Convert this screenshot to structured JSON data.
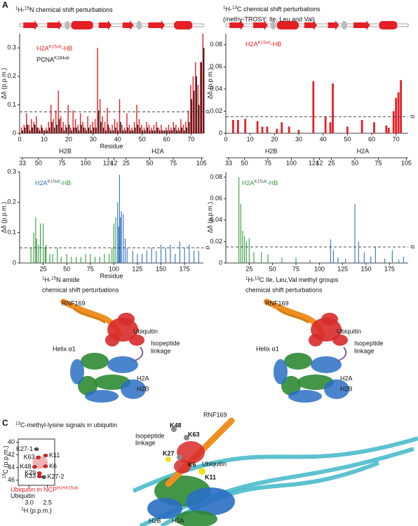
{
  "panel_labels": [
    "A",
    "C"
  ],
  "chart_data": [
    {
      "type": "bar",
      "title": [
        {
          "t": "1",
          "sup": true
        },
        {
          "t": "H-"
        },
        {
          "t": "15",
          "sup": true
        },
        {
          "t": "N chemical shift perturbations"
        }
      ],
      "xlabel": "Residue",
      "ylabel": "Δδ (p.p.m.)",
      "xlim": [
        0,
        75
      ],
      "xticks": [
        0,
        10,
        20,
        30,
        40,
        50,
        60,
        70
      ],
      "ylim": [
        0,
        0.35
      ],
      "yticks": [
        0,
        0.1,
        0.2,
        0.3
      ],
      "threshold": {
        "value": 0.075,
        "label": "σ"
      },
      "series": [
        {
          "name": [
            {
              "t": "H2A",
              "color": "#e41f26"
            },
            {
              "t": "K15ub",
              "sup": true,
              "color": "#e41f26"
            },
            {
              "t": "-HB",
              "color": "#e41f26"
            }
          ],
          "color": "#e41f26",
          "x": [
            1,
            2,
            3,
            4,
            5,
            6,
            7,
            8,
            9,
            10,
            11,
            12,
            13,
            14,
            15,
            16,
            17,
            18,
            19,
            20,
            21,
            22,
            23,
            24,
            25,
            26,
            27,
            28,
            29,
            30,
            31,
            32,
            33,
            34,
            35,
            36,
            37,
            38,
            39,
            40,
            41,
            42,
            43,
            44,
            45,
            46,
            47,
            48,
            49,
            50,
            51,
            52,
            53,
            54,
            55,
            56,
            57,
            58,
            59,
            60,
            61,
            62,
            63,
            64,
            65,
            66,
            67,
            68,
            69,
            70,
            71,
            72,
            73,
            74,
            75
          ],
          "values": [
            0.02,
            0.03,
            0.07,
            0.03,
            0.05,
            0.04,
            0.06,
            0.02,
            0.03,
            0.01,
            0.02,
            0.04,
            0.1,
            0.05,
            0.08,
            0.15,
            0.06,
            0.04,
            0.03,
            0.1,
            0.02,
            0.08,
            0.05,
            0.03,
            0.07,
            0.04,
            0.02,
            0.06,
            0.03,
            0.04,
            0.05,
            0.3,
            0.12,
            0.06,
            0.04,
            0.09,
            0.02,
            0.03,
            0.05,
            0.04,
            0.12,
            0.03,
            0.02,
            0.07,
            0.03,
            0.02,
            0.04,
            0.1,
            0.05,
            0.03,
            0.02,
            0.04,
            0.03,
            0.02,
            0.03,
            0.04,
            0.02,
            0.03,
            0.01,
            0.02,
            0.03,
            0.02,
            0.04,
            0.03,
            0.02,
            0.05,
            0.03,
            0.04,
            0.08,
            0.17,
            0.2,
            0.25,
            0.17,
            0.25,
            0.35
          ]
        },
        {
          "name": [
            {
              "t": "PCNA"
            },
            {
              "t": "K164ub",
              "sup": true
            }
          ],
          "color": "#111111",
          "x": [
            1,
            2,
            3,
            4,
            5,
            6,
            7,
            8,
            9,
            10,
            11,
            12,
            13,
            14,
            15,
            16,
            17,
            18,
            19,
            20,
            21,
            22,
            23,
            24,
            25,
            26,
            27,
            28,
            29,
            30,
            31,
            32,
            33,
            34,
            35,
            36,
            37,
            38,
            39,
            40,
            41,
            42,
            43,
            44,
            45,
            46,
            47,
            48,
            49,
            50,
            51,
            52,
            53,
            54,
            55,
            56,
            57,
            58,
            59,
            60,
            61,
            62,
            63,
            64,
            65,
            66,
            67,
            68,
            69,
            70,
            71,
            72,
            73,
            74,
            75
          ],
          "values": [
            0.01,
            0.02,
            0.03,
            0.01,
            0.02,
            0.03,
            0.02,
            0.01,
            0.02,
            0.01,
            0.01,
            0.02,
            0.04,
            0.02,
            0.03,
            0.05,
            0.02,
            0.01,
            0.02,
            0.03,
            0.01,
            0.02,
            0.02,
            0.01,
            0.03,
            0.02,
            0.01,
            0.02,
            0.01,
            0.02,
            0.02,
            0.08,
            0.04,
            0.02,
            0.01,
            0.03,
            0.01,
            0.01,
            0.02,
            0.01,
            0.04,
            0.01,
            0.01,
            0.02,
            0.01,
            0.01,
            0.02,
            0.03,
            0.02,
            0.01,
            0.01,
            0.02,
            0.01,
            0.01,
            0.01,
            0.02,
            0.01,
            0.01,
            0.01,
            0.01,
            0.01,
            0.01,
            0.02,
            0.01,
            0.01,
            0.02,
            0.01,
            0.02,
            0.04,
            0.12,
            0.15,
            0.2,
            0.1,
            0.25,
            0.3
          ]
        }
      ]
    },
    {
      "type": "bar",
      "title": [
        {
          "t": "1",
          "sup": true
        },
        {
          "t": "H-"
        },
        {
          "t": "13",
          "sup": true
        },
        {
          "t": "C chemical shift perturbations"
        }
      ],
      "subtitle": "(methy-TROSY: Ile, Leu and Val)",
      "ylabel": "Δδ (p.p.m.)",
      "xlim": [
        0,
        75
      ],
      "xticks": [
        0,
        10,
        20,
        30,
        40,
        50,
        60,
        70
      ],
      "ylim": [
        0,
        0.09
      ],
      "yticks": [
        0,
        0.02,
        0.04,
        0.06,
        0.08
      ],
      "threshold": {
        "value": 0.015,
        "label": "σ"
      },
      "series": [
        {
          "name": [
            {
              "t": "H2A",
              "color": "#e41f26"
            },
            {
              "t": "K15ub",
              "sup": true,
              "color": "#e41f26"
            },
            {
              "t": "-HB",
              "color": "#e41f26"
            }
          ],
          "color": "#e41f26",
          "x": [
            3,
            5,
            8,
            13,
            15,
            17,
            21,
            23,
            26,
            30,
            36,
            41,
            43,
            44,
            50,
            56,
            61,
            66,
            67,
            69,
            70,
            71,
            72
          ],
          "values": [
            0.012,
            0.012,
            0.013,
            0.011,
            0.006,
            0.006,
            0.004,
            0.01,
            0.006,
            0.003,
            0.047,
            0.015,
            0.01,
            0.045,
            0.006,
            0.012,
            0.01,
            0.007,
            0.005,
            0.02,
            0.032,
            0.037,
            0.048
          ]
        }
      ]
    },
    {
      "type": "bar",
      "xlabel": "Residue",
      "ylabel": "Δδ (p.p.m.)",
      "label": [
        {
          "t": "H2A",
          "color": "#2a6ec3"
        },
        {
          "t": "K15ub",
          "sup": true,
          "color": "#555555"
        },
        {
          "t": "-HB",
          "color": "#2f9a3a"
        }
      ],
      "xlim": [
        0,
        195
      ],
      "xticks": [
        25,
        50,
        75,
        100,
        125,
        150,
        175
      ],
      "ylim": [
        0,
        0.3
      ],
      "yticks": [
        0,
        0.1,
        0.2,
        0.3
      ],
      "threshold": {
        "value": 0.05,
        "label": "σ"
      },
      "top_axis": [
        {
          "name": "H2B",
          "color": "#2f9a3a",
          "ticks": [
            {
              "value": 3,
              "label": "33"
            },
            {
              "value": 20,
              "label": "50"
            },
            {
              "value": 45,
              "label": "75"
            },
            {
              "value": 70,
              "label": "100"
            },
            {
              "value": 94,
              "label": "124"
            }
          ]
        },
        {
          "name": "H2A",
          "color": "#2a6ec3",
          "ticks": [
            {
              "value": 100,
              "label": "12"
            },
            {
              "value": 113,
              "label": "25"
            },
            {
              "value": 138,
              "label": "50"
            },
            {
              "value": 163,
              "label": "75"
            },
            {
              "value": 193,
              "label": "105"
            }
          ]
        }
      ],
      "series": [
        {
          "color": "#2f9a3a",
          "x": [
            12,
            15,
            17,
            18,
            20,
            22,
            25,
            27,
            28,
            32,
            35,
            40,
            44,
            50,
            55,
            60,
            65,
            70,
            75,
            80,
            85,
            90,
            95,
            98,
            100,
            102
          ],
          "values": [
            0.05,
            0.1,
            0.15,
            0.08,
            0.06,
            0.13,
            0.13,
            0.05,
            0.06,
            0.03,
            0.03,
            0.05,
            0.02,
            0.03,
            0.02,
            0.02,
            0.02,
            0.03,
            0.03,
            0.02,
            0.02,
            0.03,
            0.03,
            0.05,
            0.13,
            0.15
          ]
        },
        {
          "color": "#2a6ec3",
          "x": [
            104,
            105,
            106,
            107,
            108,
            110,
            112,
            114,
            120,
            125,
            130,
            135,
            140,
            145,
            150,
            155,
            160,
            165,
            170,
            175,
            180,
            185,
            190
          ],
          "values": [
            0.2,
            0.12,
            0.29,
            0.15,
            0.17,
            0.16,
            0.08,
            0.05,
            0.04,
            0.03,
            0.03,
            0.04,
            0.05,
            0.04,
            0.06,
            0.05,
            0.06,
            0.03,
            0.07,
            0.05,
            0.06,
            0.04,
            0.04
          ]
        }
      ]
    },
    {
      "type": "bar",
      "ylabel": "Δδ (p.p.m.)",
      "label": [
        {
          "t": "H2A",
          "color": "#2f9a3a"
        },
        {
          "t": "K15ub",
          "sup": true,
          "color": "#555555"
        },
        {
          "t": "-HB",
          "color": "#2f9a3a"
        }
      ],
      "xlim": [
        0,
        195
      ],
      "xticks": [
        25,
        50,
        75,
        100,
        125,
        150,
        175
      ],
      "ylim": [
        0,
        0.085
      ],
      "yticks": [
        0,
        0.02,
        0.04,
        0.06,
        0.08
      ],
      "threshold": {
        "value": 0.015,
        "label": "σ"
      },
      "top_axis": [
        {
          "name": "H2B",
          "color": "#2f9a3a",
          "ticks": [
            {
              "value": 3,
              "label": "33"
            },
            {
              "value": 20,
              "label": "50"
            },
            {
              "value": 45,
              "label": "75"
            },
            {
              "value": 70,
              "label": "100"
            },
            {
              "value": 94,
              "label": "124"
            }
          ]
        },
        {
          "name": "H2A",
          "color": "#2a6ec3",
          "ticks": [
            {
              "value": 100,
              "label": "12"
            },
            {
              "value": 113,
              "label": "25"
            },
            {
              "value": 138,
              "label": "50"
            },
            {
              "value": 163,
              "label": "75"
            },
            {
              "value": 193,
              "label": "105"
            }
          ]
        }
      ],
      "series": [
        {
          "color": "#2f9a3a",
          "x": [
            14,
            16,
            18,
            20,
            22,
            25,
            30,
            38,
            45,
            60,
            75,
            90
          ],
          "values": [
            0.08,
            0.055,
            0.03,
            0.025,
            0.02,
            0.023,
            0.01,
            0.01,
            0.008,
            0.005,
            0.005,
            0.003
          ]
        },
        {
          "color": "#2a6ec3",
          "x": [
            112,
            115,
            120,
            128,
            138,
            142,
            148,
            155,
            160,
            170,
            178,
            185,
            190
          ],
          "values": [
            0.022,
            0.012,
            0.005,
            0.004,
            0.055,
            0.02,
            0.01,
            0.006,
            0.015,
            0.004,
            0.012,
            0.003,
            0.006
          ]
        }
      ]
    },
    {
      "type": "contour",
      "title": [
        {
          "t": "13",
          "sup": true
        },
        {
          "t": "C-methyl-lysine signals in ubiquitin"
        }
      ],
      "xlabel": [
        {
          "t": "1",
          "sup": true
        },
        {
          "t": "H (p.p.m.)"
        }
      ],
      "ylabel": [
        {
          "t": "13",
          "sup": true
        },
        {
          "t": "C (p.p.m.)"
        }
      ],
      "xlim": [
        3.3,
        2.3
      ],
      "xticks": [
        {
          "value": 3,
          "label": "3.0"
        },
        2.5
      ],
      "ylim": [
        39.5,
        46.8
      ],
      "yticks": [
        40,
        42,
        44,
        46
      ],
      "legend": [
        [
          {
            "t": "Ubiquitin in NCP",
            "color": "#e41f26"
          },
          {
            "t": "H2AK15ub",
            "sup": true,
            "color": "#e41f26"
          }
        ],
        [
          {
            "t": "Ubiquitin"
          }
        ]
      ],
      "peaks": [
        {
          "label": "K27-1",
          "x": 2.8,
          "y": 41.1,
          "color": "#555555"
        },
        {
          "label": "K63",
          "x": 2.75,
          "y": 42.4,
          "color": "#e41f26"
        },
        {
          "label": "K11",
          "x": 2.55,
          "y": 42.1,
          "color": "#e41f26"
        },
        {
          "label": "K48",
          "x": 2.85,
          "y": 43.9,
          "color": "#e41f26"
        },
        {
          "label": "K6",
          "x": 2.55,
          "y": 43.8,
          "color": "#e41f26"
        },
        {
          "label": "K29",
          "x": 2.72,
          "y": 44.9,
          "color": "#e41f26"
        },
        {
          "label": "K33",
          "x": 2.72,
          "y": 45.4,
          "color": "#e41f26"
        },
        {
          "label": "K27-2",
          "x": 2.6,
          "y": 45.5,
          "color": "#555555"
        }
      ]
    }
  ],
  "structures": [
    {
      "title": [
        {
          "t": "1",
          "sup": true
        },
        {
          "t": "H-"
        },
        {
          "t": "15",
          "sup": true
        },
        {
          "t": "N amide"
        }
      ],
      "title2": "chemical shift perturbations",
      "labels": [
        {
          "t": "RNF169",
          "color": "#ef8f22"
        },
        {
          "t": "Ubiquitin",
          "color": "#e41f26"
        },
        {
          "t": "Helix α1",
          "color": "#2f9a3a"
        },
        {
          "t": "Isopeptide",
          "color": "#222222"
        },
        {
          "t": "linkage",
          "color": "#222222"
        },
        {
          "t": "H2A",
          "color": "#2a6ec3"
        },
        {
          "t": "H2B",
          "color": "#2f9a3a"
        }
      ]
    },
    {
      "title": [
        {
          "t": "1",
          "sup": true
        },
        {
          "t": "H-"
        },
        {
          "t": "13",
          "sup": true
        },
        {
          "t": "C Ile, Leu,Val methyl groups"
        }
      ],
      "title2": "chemical shift perturbations",
      "labels": [
        {
          "t": "RNF169",
          "color": "#ef8f22"
        },
        {
          "t": "Ubiquitin",
          "color": "#e41f26"
        },
        {
          "t": "Helix α1",
          "color": "#2f9a3a"
        },
        {
          "t": "Isopeptide",
          "color": "#222222"
        },
        {
          "t": "linkage",
          "color": "#222222"
        },
        {
          "t": "H2A",
          "color": "#2a6ec3"
        },
        {
          "t": "H2B",
          "color": "#2f9a3a"
        }
      ]
    }
  ],
  "complex_labels": [
    {
      "t": "RNF169",
      "color": "#ef8f22"
    },
    {
      "t": "K48",
      "color": "#555555"
    },
    {
      "t": "K63",
      "color": "#555555"
    },
    {
      "t": "Isopeptide",
      "color": "#222222"
    },
    {
      "t": "linkage",
      "color": "#222222"
    },
    {
      "t": "K27",
      "color": "#b59a1c"
    },
    {
      "t": "K6",
      "color": "#555555"
    },
    {
      "t": "Ubiquitin",
      "color": "#e41f26"
    },
    {
      "t": "K11",
      "color": "#b59a1c"
    },
    {
      "t": "H2B",
      "color": "#2f9a3a"
    },
    {
      "t": "H2A",
      "color": "#2a6ec3"
    }
  ]
}
